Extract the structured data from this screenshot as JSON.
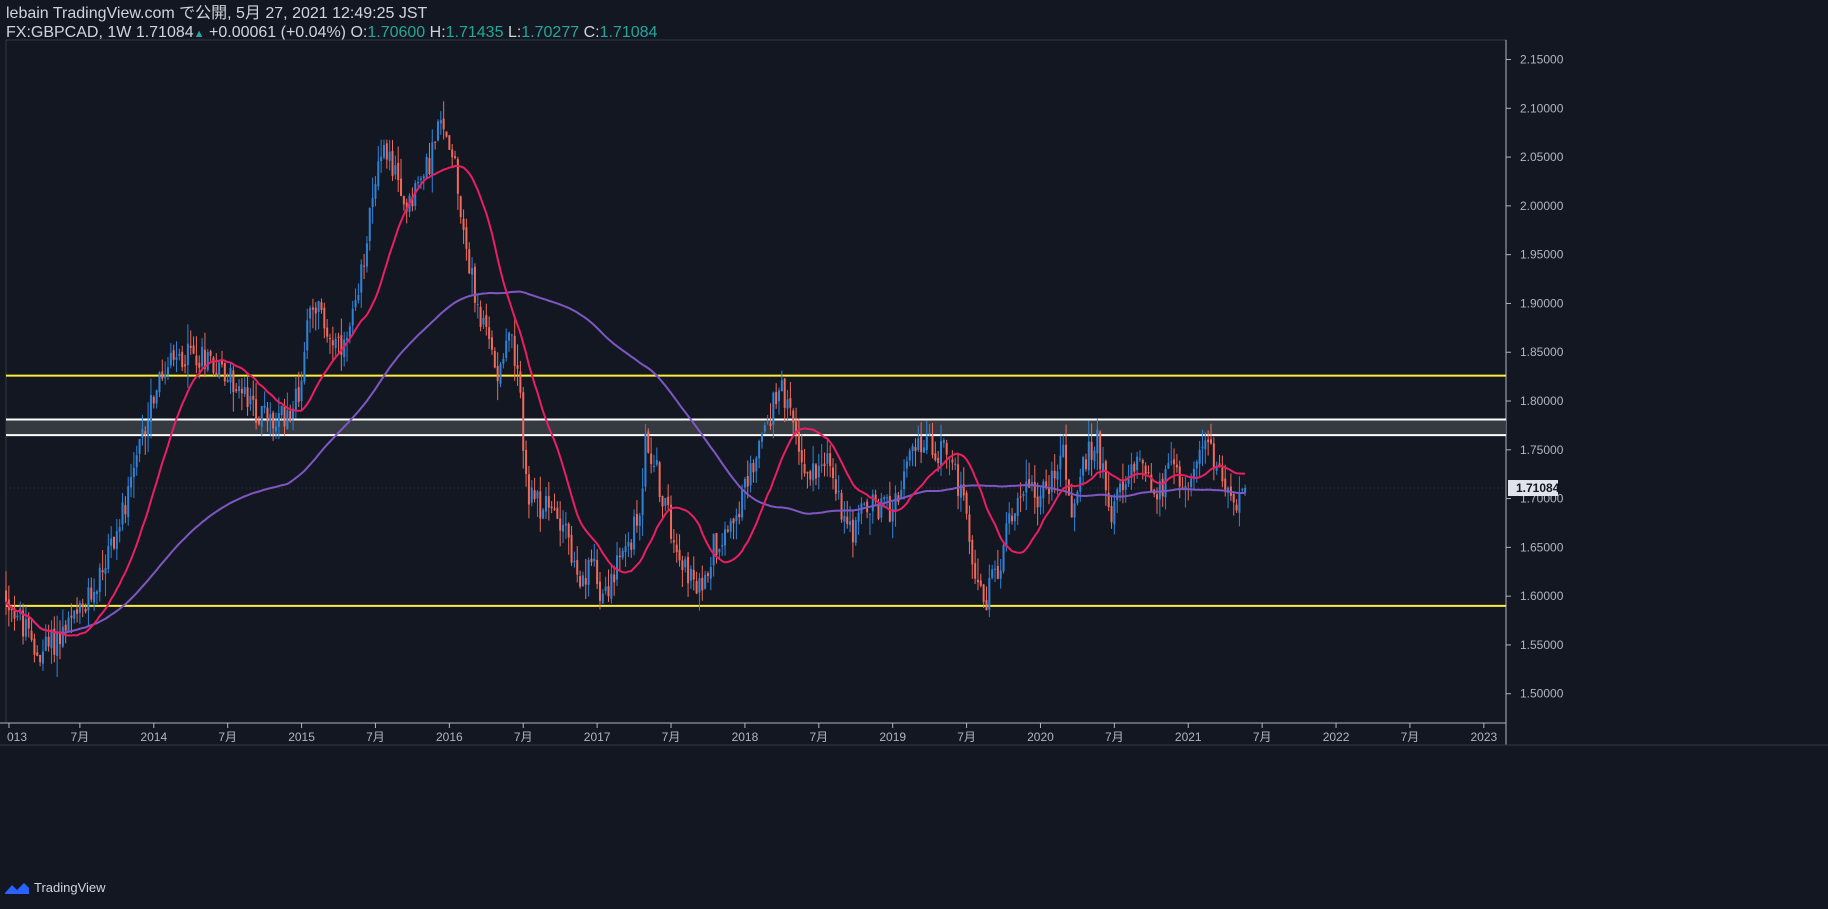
{
  "header": {
    "published": "lebain TradingView.com で公開, 5月 27, 2021 12:49:25 JST",
    "symbol": "FX:GBPCAD, 1W",
    "last": "1.71084",
    "change_arrow": "▲",
    "change": "+0.00061 (+0.04%)",
    "o_label": "O:",
    "o_value": "1.70600",
    "h_label": "H:",
    "h_value": "1.71435",
    "l_label": "L:",
    "l_value": "1.70277",
    "c_label": "C:",
    "c_value": "1.71084"
  },
  "footer": {
    "brand": "TradingView"
  },
  "colors": {
    "background": "#131722",
    "up": "#2f83d6",
    "down": "#ef6a5a",
    "ma_fast": "#e91e63",
    "ma_slow": "#7e57c2",
    "level": "#ffeb3b",
    "zone_border": "#ffffff",
    "zone_fill": "#3a3d44",
    "price_tag": "#e0e3eb"
  },
  "chart_data": {
    "type": "candlestick",
    "title": "FX:GBPCAD, 1W",
    "x_ticks": [
      {
        "label": "013",
        "t": 2013.02
      },
      {
        "label": "7月",
        "t": 2013.5
      },
      {
        "label": "2014",
        "t": 2014.0
      },
      {
        "label": "7月",
        "t": 2014.5
      },
      {
        "label": "2015",
        "t": 2015.0
      },
      {
        "label": "7月",
        "t": 2015.5
      },
      {
        "label": "2016",
        "t": 2016.0
      },
      {
        "label": "7月",
        "t": 2016.5
      },
      {
        "label": "2017",
        "t": 2017.0
      },
      {
        "label": "7月",
        "t": 2017.5
      },
      {
        "label": "2018",
        "t": 2018.0
      },
      {
        "label": "7月",
        "t": 2018.5
      },
      {
        "label": "2019",
        "t": 2019.0
      },
      {
        "label": "7月",
        "t": 2019.5
      },
      {
        "label": "2020",
        "t": 2020.0
      },
      {
        "label": "7月",
        "t": 2020.5
      },
      {
        "label": "2021",
        "t": 2021.0
      },
      {
        "label": "7月",
        "t": 2021.5
      },
      {
        "label": "2022",
        "t": 2022.0
      },
      {
        "label": "7月",
        "t": 2022.5
      },
      {
        "label": "2023",
        "t": 2023.0
      }
    ],
    "y_ticks": [
      "1.50000",
      "1.55000",
      "1.60000",
      "1.65000",
      "1.70000",
      "1.75000",
      "1.80000",
      "1.85000",
      "1.90000",
      "1.95000",
      "2.00000",
      "2.05000",
      "2.10000",
      "2.15000"
    ],
    "ylim": [
      1.47,
      2.17
    ],
    "xlim": [
      2013.0,
      2023.15
    ],
    "last_price_label": "1.71084",
    "last_price": 1.71084,
    "horizontal_levels": [
      1.826,
      1.59
    ],
    "zone": [
      1.765,
      1.781
    ],
    "anchors": [
      [
        2013.0,
        1.605
      ],
      [
        2013.1,
        1.58
      ],
      [
        2013.22,
        1.54
      ],
      [
        2013.35,
        1.555
      ],
      [
        2013.55,
        1.585
      ],
      [
        2013.7,
        1.64
      ],
      [
        2013.85,
        1.7
      ],
      [
        2014.0,
        1.8
      ],
      [
        2014.1,
        1.83
      ],
      [
        2014.25,
        1.85
      ],
      [
        2014.4,
        1.845
      ],
      [
        2014.55,
        1.82
      ],
      [
        2014.7,
        1.79
      ],
      [
        2014.85,
        1.775
      ],
      [
        2015.0,
        1.805
      ],
      [
        2015.08,
        1.91
      ],
      [
        2015.2,
        1.87
      ],
      [
        2015.3,
        1.845
      ],
      [
        2015.4,
        1.9
      ],
      [
        2015.5,
        2.02
      ],
      [
        2015.6,
        2.06
      ],
      [
        2015.7,
        2.0
      ],
      [
        2015.85,
        2.03
      ],
      [
        2015.95,
        2.08
      ],
      [
        2016.05,
        2.06
      ],
      [
        2016.1,
        1.99
      ],
      [
        2016.2,
        1.9
      ],
      [
        2016.35,
        1.83
      ],
      [
        2016.42,
        1.88
      ],
      [
        2016.5,
        1.8
      ],
      [
        2016.55,
        1.7
      ],
      [
        2016.65,
        1.69
      ],
      [
        2016.8,
        1.68
      ],
      [
        2016.9,
        1.6
      ],
      [
        2017.0,
        1.64
      ],
      [
        2017.05,
        1.6
      ],
      [
        2017.2,
        1.64
      ],
      [
        2017.3,
        1.68
      ],
      [
        2017.35,
        1.76
      ],
      [
        2017.4,
        1.74
      ],
      [
        2017.5,
        1.68
      ],
      [
        2017.6,
        1.64
      ],
      [
        2017.7,
        1.6
      ],
      [
        2017.8,
        1.65
      ],
      [
        2017.92,
        1.68
      ],
      [
        2018.0,
        1.7
      ],
      [
        2018.1,
        1.75
      ],
      [
        2018.2,
        1.79
      ],
      [
        2018.25,
        1.82
      ],
      [
        2018.35,
        1.77
      ],
      [
        2018.45,
        1.72
      ],
      [
        2018.55,
        1.75
      ],
      [
        2018.65,
        1.7
      ],
      [
        2018.75,
        1.67
      ],
      [
        2018.85,
        1.69
      ],
      [
        2019.0,
        1.69
      ],
      [
        2019.12,
        1.73
      ],
      [
        2019.2,
        1.76
      ],
      [
        2019.3,
        1.75
      ],
      [
        2019.4,
        1.75
      ],
      [
        2019.5,
        1.69
      ],
      [
        2019.6,
        1.61
      ],
      [
        2019.65,
        1.595
      ],
      [
        2019.75,
        1.64
      ],
      [
        2019.85,
        1.7
      ],
      [
        2019.95,
        1.72
      ],
      [
        2020.0,
        1.7
      ],
      [
        2020.1,
        1.72
      ],
      [
        2020.17,
        1.76
      ],
      [
        2020.22,
        1.68
      ],
      [
        2020.3,
        1.73
      ],
      [
        2020.4,
        1.76
      ],
      [
        2020.5,
        1.69
      ],
      [
        2020.6,
        1.71
      ],
      [
        2020.7,
        1.75
      ],
      [
        2020.8,
        1.7
      ],
      [
        2020.9,
        1.73
      ],
      [
        2021.0,
        1.72
      ],
      [
        2021.1,
        1.74
      ],
      [
        2021.15,
        1.76
      ],
      [
        2021.22,
        1.725
      ],
      [
        2021.3,
        1.72
      ],
      [
        2021.35,
        1.69
      ],
      [
        2021.4,
        1.711
      ]
    ]
  }
}
